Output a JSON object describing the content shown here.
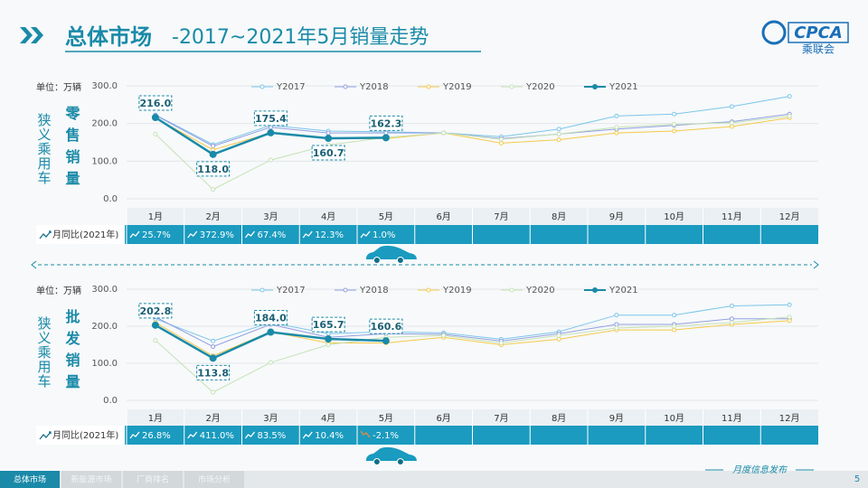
{
  "header": {
    "title_main": "总体市场",
    "title_rest": "-2017~2021年5月销量走势",
    "logo": "CPCA",
    "logo_sub": "乘联会"
  },
  "footer": {
    "tabs": [
      "总体市场",
      "新能源市场",
      "厂商排名",
      "市场分析"
    ],
    "note": "月度信息发布",
    "page": "5"
  },
  "chart_data": [
    {
      "type": "line",
      "unit": "单位：万辆",
      "side_label": "狭义乘用车",
      "title": "零售销量",
      "categories": [
        "1月",
        "2月",
        "3月",
        "4月",
        "5月",
        "6月",
        "7月",
        "8月",
        "9月",
        "10月",
        "11月",
        "12月"
      ],
      "ylim": [
        0,
        300
      ],
      "yticks": [
        {
          "value": 0,
          "label": "0.0"
        },
        {
          "value": 100,
          "label": "100.0"
        },
        {
          "value": 200,
          "label": "200.0"
        },
        {
          "value": 300,
          "label": "300.0"
        }
      ],
      "grid": true,
      "legend": "top",
      "series": [
        {
          "name": "Y2017",
          "color": "#7cc6ea",
          "values": [
            223,
            144,
            195,
            180,
            178,
            175,
            165,
            185,
            220,
            225,
            245,
            272
          ]
        },
        {
          "name": "Y2018",
          "color": "#929fe0",
          "values": [
            222,
            140,
            190,
            175,
            175,
            175,
            160,
            172,
            185,
            195,
            205,
            225
          ]
        },
        {
          "name": "Y2019",
          "color": "#f5c94a",
          "values": [
            215,
            130,
            175,
            160,
            160,
            175,
            148,
            157,
            175,
            180,
            192,
            215
          ]
        },
        {
          "name": "Y2020",
          "color": "#c6e2b6",
          "values": [
            172,
            25,
            103,
            143,
            163,
            175,
            158,
            172,
            190,
            198,
            202,
            220
          ]
        },
        {
          "name": "Y2021",
          "color": "#1a8aa8",
          "values": [
            216.0,
            118.0,
            175.4,
            160.7,
            162.3,
            null,
            null,
            null,
            null,
            null,
            null,
            null
          ],
          "value_labels": [
            "216.0",
            "118.0",
            "175.4",
            "160.7",
            "162.3",
            null,
            null,
            null,
            null,
            null,
            null,
            null
          ]
        }
      ],
      "yoy": {
        "label": "月同比(2021年)",
        "values": [
          25.7,
          372.9,
          67.4,
          12.3,
          1.0
        ],
        "value_labels": [
          "25.7%",
          "372.9%",
          "67.4%",
          "12.3%",
          "1.0%"
        ]
      }
    },
    {
      "type": "line",
      "unit": "单位：万辆",
      "side_label": "狭义乘用车",
      "title": "批发销量",
      "categories": [
        "1月",
        "2月",
        "3月",
        "4月",
        "5月",
        "6月",
        "7月",
        "8月",
        "9月",
        "10月",
        "11月",
        "12月"
      ],
      "ylim": [
        0,
        300
      ],
      "yticks": [
        {
          "value": 0,
          "label": "0.0"
        },
        {
          "value": 100,
          "label": "100.0"
        },
        {
          "value": 200,
          "label": "200.0"
        },
        {
          "value": 300,
          "label": "300.0"
        }
      ],
      "grid": true,
      "legend": "top",
      "series": [
        {
          "name": "Y2017",
          "color": "#7cc6ea",
          "values": [
            220,
            160,
            210,
            180,
            185,
            182,
            165,
            185,
            230,
            230,
            255,
            258
          ]
        },
        {
          "name": "Y2018",
          "color": "#929fe0",
          "values": [
            225,
            145,
            205,
            170,
            180,
            178,
            160,
            180,
            205,
            205,
            220,
            220
          ]
        },
        {
          "name": "Y2019",
          "color": "#f5c94a",
          "values": [
            210,
            120,
            185,
            155,
            155,
            170,
            150,
            165,
            190,
            190,
            205,
            215
          ]
        },
        {
          "name": "Y2020",
          "color": "#c6e2b6",
          "values": [
            162,
            22,
            102,
            150,
            170,
            175,
            155,
            175,
            195,
            200,
            210,
            225
          ]
        },
        {
          "name": "Y2021",
          "color": "#1a8aa8",
          "values": [
            202.8,
            113.8,
            184.0,
            165.7,
            160.6,
            null,
            null,
            null,
            null,
            null,
            null,
            null
          ],
          "value_labels": [
            "202.8",
            "113.8",
            "184.0",
            "165.7",
            "160.6",
            null,
            null,
            null,
            null,
            null,
            null,
            null
          ]
        }
      ],
      "yoy": {
        "label": "月同比(2021年)",
        "values": [
          26.8,
          411.0,
          83.5,
          10.4,
          -2.1
        ],
        "value_labels": [
          "26.8%",
          "411.0%",
          "83.5%",
          "10.4%",
          "-2.1%"
        ]
      }
    }
  ]
}
